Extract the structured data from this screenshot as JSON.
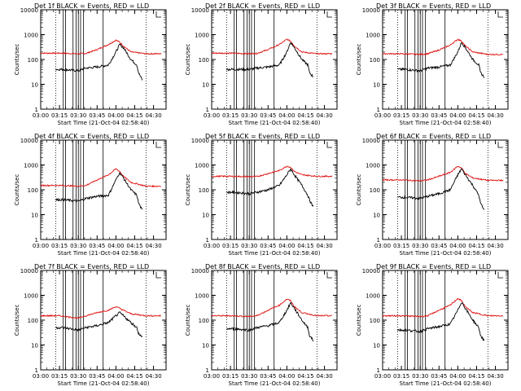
{
  "figure": {
    "title_suffix": "BLACK = Events, RED = LLD",
    "xlabel": "Start Time (21-Oct-04 02:58:40)",
    "ylabel": "Counts/sec",
    "colors": {
      "events": "#000000",
      "lld": "#e01010",
      "axes": "#000000"
    }
  },
  "chart_data": [
    {
      "type": "line",
      "detector": "1f",
      "title": "Det 1f BLACK = Events, RED = LLD",
      "xlabel": "Start Time (21-Oct-04 02:58:40)",
      "ylabel": "Counts/sec",
      "xlim": [
        3.0,
        4.667
      ],
      "ylim": [
        1,
        10000
      ],
      "yscale": "log",
      "x_ticks": [
        "03:00",
        "03:15",
        "03:30",
        "03:45",
        "04:00",
        "04:15",
        "04:30"
      ],
      "y_ticks": [
        "1",
        "10",
        "100",
        "1000",
        "10000"
      ],
      "dotted_lines": [
        3.2,
        4.4
      ],
      "solid_lines": [
        3.3,
        3.33,
        3.43,
        3.47,
        3.5,
        3.53,
        3.57,
        3.83
      ],
      "series": [
        {
          "name": "LLD",
          "color": "red",
          "x": [
            3.0,
            3.25,
            3.5,
            3.6,
            3.75,
            3.9,
            4.0,
            4.05,
            4.1,
            4.2,
            4.4,
            4.6
          ],
          "y": [
            180,
            180,
            170,
            175,
            250,
            400,
            600,
            500,
            350,
            200,
            170,
            170
          ]
        },
        {
          "name": "Events",
          "color": "black",
          "x": [
            3.2,
            3.3,
            3.5,
            3.6,
            3.75,
            3.9,
            4.0,
            4.05,
            4.1,
            4.2,
            4.28,
            4.3,
            4.35
          ],
          "y": [
            40,
            40,
            35,
            45,
            50,
            60,
            200,
            400,
            300,
            100,
            60,
            30,
            15
          ]
        }
      ]
    },
    {
      "type": "line",
      "detector": "2f",
      "title": "Det 2f BLACK = Events, RED = LLD",
      "xlabel": "Start Time (21-Oct-04 02:58:40)",
      "ylabel": "Counts/sec",
      "xlim": [
        3.0,
        4.667
      ],
      "ylim": [
        1,
        10000
      ],
      "yscale": "log",
      "x_ticks": [
        "03:00",
        "03:15",
        "03:30",
        "03:45",
        "04:00",
        "04:15",
        "04:30"
      ],
      "y_ticks": [
        "1",
        "10",
        "100",
        "1000",
        "10000"
      ],
      "dotted_lines": [
        3.2,
        4.4
      ],
      "solid_lines": [
        3.3,
        3.33,
        3.43,
        3.47,
        3.5,
        3.53,
        3.57,
        3.83
      ],
      "series": [
        {
          "name": "LLD",
          "color": "red",
          "x": [
            3.0,
            3.25,
            3.5,
            3.6,
            3.75,
            3.9,
            4.0,
            4.05,
            4.1,
            4.2,
            4.4,
            4.6
          ],
          "y": [
            180,
            180,
            170,
            175,
            250,
            400,
            650,
            550,
            350,
            200,
            170,
            170
          ]
        },
        {
          "name": "Events",
          "color": "black",
          "x": [
            3.2,
            3.3,
            3.5,
            3.6,
            3.75,
            3.9,
            4.0,
            4.05,
            4.1,
            4.2,
            4.28,
            4.3,
            4.35
          ],
          "y": [
            40,
            40,
            40,
            45,
            50,
            60,
            200,
            500,
            300,
            100,
            60,
            30,
            20
          ]
        }
      ]
    },
    {
      "type": "line",
      "detector": "3f",
      "title": "Det 3f BLACK = Events, RED = LLD",
      "xlabel": "Start Time (21-Oct-04 02:58:40)",
      "ylabel": "Counts/sec",
      "xlim": [
        3.0,
        4.667
      ],
      "ylim": [
        1,
        10000
      ],
      "yscale": "log",
      "x_ticks": [
        "03:00",
        "03:15",
        "03:30",
        "03:45",
        "04:00",
        "04:15",
        "04:30"
      ],
      "y_ticks": [
        "1",
        "10",
        "100",
        "1000",
        "10000"
      ],
      "dotted_lines": [
        3.2,
        4.4
      ],
      "solid_lines": [
        3.3,
        3.33,
        3.43,
        3.47,
        3.5,
        3.53,
        3.57,
        3.83
      ],
      "series": [
        {
          "name": "LLD",
          "color": "red",
          "x": [
            3.0,
            3.25,
            3.5,
            3.6,
            3.75,
            3.9,
            4.0,
            4.05,
            4.1,
            4.2,
            4.4,
            4.6
          ],
          "y": [
            170,
            170,
            160,
            170,
            240,
            380,
            650,
            550,
            350,
            200,
            160,
            160
          ]
        },
        {
          "name": "Events",
          "color": "black",
          "x": [
            3.2,
            3.3,
            3.5,
            3.6,
            3.75,
            3.9,
            4.0,
            4.05,
            4.1,
            4.2,
            4.28,
            4.3,
            4.35
          ],
          "y": [
            40,
            40,
            35,
            45,
            50,
            60,
            200,
            500,
            300,
            100,
            60,
            30,
            20
          ]
        }
      ]
    },
    {
      "type": "line",
      "detector": "4f",
      "title": "Det 4f BLACK = Events, RED = LLD",
      "xlabel": "Start Time (21-Oct-04 02:58:40)",
      "ylabel": "Counts/sec",
      "xlim": [
        3.0,
        4.667
      ],
      "ylim": [
        1,
        10000
      ],
      "yscale": "log",
      "x_ticks": [
        "03:00",
        "03:15",
        "03:30",
        "03:45",
        "04:00",
        "04:15",
        "04:30"
      ],
      "y_ticks": [
        "1",
        "10",
        "100",
        "1000",
        "10000"
      ],
      "dotted_lines": [
        3.2,
        4.4
      ],
      "solid_lines": [
        3.3,
        3.33,
        3.43,
        3.47,
        3.5,
        3.53,
        3.57,
        3.83
      ],
      "series": [
        {
          "name": "LLD",
          "color": "red",
          "x": [
            3.0,
            3.25,
            3.5,
            3.6,
            3.75,
            3.9,
            4.0,
            4.05,
            4.1,
            4.2,
            4.4,
            4.6
          ],
          "y": [
            150,
            150,
            140,
            150,
            250,
            400,
            700,
            550,
            350,
            200,
            140,
            140
          ]
        },
        {
          "name": "Events",
          "color": "black",
          "x": [
            3.2,
            3.3,
            3.5,
            3.6,
            3.75,
            3.9,
            4.0,
            4.05,
            4.1,
            4.2,
            4.28,
            4.3,
            4.35
          ],
          "y": [
            40,
            40,
            35,
            45,
            55,
            60,
            250,
            500,
            300,
            100,
            60,
            30,
            15
          ]
        }
      ]
    },
    {
      "type": "line",
      "detector": "5f",
      "title": "Det 5f BLACK = Events, RED = LLD",
      "xlabel": "Start Time (21-Oct-04 02:58:40)",
      "ylabel": "Counts/sec",
      "xlim": [
        3.0,
        4.667
      ],
      "ylim": [
        1,
        10000
      ],
      "yscale": "log",
      "x_ticks": [
        "03:00",
        "03:15",
        "03:30",
        "03:45",
        "04:00",
        "04:15",
        "04:30"
      ],
      "y_ticks": [
        "1",
        "10",
        "100",
        "1000",
        "10000"
      ],
      "dotted_lines": [
        3.2,
        4.4
      ],
      "solid_lines": [
        3.3,
        3.33,
        3.43,
        3.47,
        3.5,
        3.53,
        3.57,
        3.83
      ],
      "series": [
        {
          "name": "LLD",
          "color": "red",
          "x": [
            3.0,
            3.25,
            3.5,
            3.6,
            3.75,
            3.9,
            4.0,
            4.05,
            4.1,
            4.2,
            4.4,
            4.6
          ],
          "y": [
            350,
            350,
            340,
            340,
            450,
            600,
            900,
            800,
            550,
            400,
            350,
            350
          ]
        },
        {
          "name": "Events",
          "color": "black",
          "x": [
            3.2,
            3.3,
            3.5,
            3.6,
            3.75,
            3.9,
            4.0,
            4.05,
            4.1,
            4.2,
            4.28,
            4.3,
            4.35
          ],
          "y": [
            80,
            80,
            70,
            80,
            100,
            150,
            400,
            700,
            400,
            150,
            60,
            40,
            20
          ]
        }
      ]
    },
    {
      "type": "line",
      "detector": "6f",
      "title": "Det 6f BLACK = Events, RED = LLD",
      "xlabel": "Start Time (21-Oct-04 02:58:40)",
      "ylabel": "Counts/sec",
      "xlim": [
        3.0,
        4.667
      ],
      "ylim": [
        1,
        10000
      ],
      "yscale": "log",
      "x_ticks": [
        "03:00",
        "03:15",
        "03:30",
        "03:45",
        "04:00",
        "04:15",
        "04:30"
      ],
      "y_ticks": [
        "1",
        "10",
        "100",
        "1000",
        "10000"
      ],
      "dotted_lines": [
        3.2,
        4.4
      ],
      "solid_lines": [
        3.3,
        3.33,
        3.43,
        3.47,
        3.5,
        3.53,
        3.57,
        3.83
      ],
      "series": [
        {
          "name": "LLD",
          "color": "red",
          "x": [
            3.0,
            3.25,
            3.5,
            3.6,
            3.75,
            3.9,
            4.0,
            4.05,
            4.1,
            4.2,
            4.4,
            4.6
          ],
          "y": [
            250,
            250,
            230,
            250,
            350,
            500,
            900,
            750,
            450,
            300,
            240,
            240
          ]
        },
        {
          "name": "Events",
          "color": "black",
          "x": [
            3.2,
            3.3,
            3.5,
            3.6,
            3.75,
            3.9,
            4.0,
            4.05,
            4.1,
            4.2,
            4.28,
            4.3,
            4.35
          ],
          "y": [
            50,
            50,
            45,
            55,
            70,
            100,
            400,
            700,
            400,
            150,
            60,
            30,
            15
          ]
        }
      ]
    },
    {
      "type": "line",
      "detector": "7f",
      "title": "Det 7f BLACK = Events, RED = LLD",
      "xlabel": "Start Time (21-Oct-04 02:58:40)",
      "ylabel": "Counts/sec",
      "xlim": [
        3.0,
        4.667
      ],
      "ylim": [
        1,
        10000
      ],
      "yscale": "log",
      "x_ticks": [
        "03:00",
        "03:15",
        "03:30",
        "03:45",
        "04:00",
        "04:15",
        "04:30"
      ],
      "y_ticks": [
        "1",
        "10",
        "100",
        "1000",
        "10000"
      ],
      "dotted_lines": [
        3.2,
        4.4
      ],
      "solid_lines": [
        3.3,
        3.33,
        3.43,
        3.47,
        3.5,
        3.53,
        3.57,
        3.83
      ],
      "series": [
        {
          "name": "LLD",
          "color": "red",
          "x": [
            3.0,
            3.25,
            3.5,
            3.6,
            3.75,
            3.9,
            4.0,
            4.05,
            4.1,
            4.2,
            4.4,
            4.6
          ],
          "y": [
            150,
            150,
            120,
            150,
            200,
            250,
            350,
            300,
            250,
            180,
            150,
            150
          ]
        },
        {
          "name": "Events",
          "color": "black",
          "x": [
            3.2,
            3.3,
            3.5,
            3.6,
            3.75,
            3.9,
            4.0,
            4.05,
            4.1,
            4.2,
            4.28,
            4.3,
            4.35
          ],
          "y": [
            50,
            50,
            40,
            50,
            60,
            80,
            150,
            200,
            150,
            80,
            50,
            30,
            20
          ]
        }
      ]
    },
    {
      "type": "line",
      "detector": "8f",
      "title": "Det 8f BLACK = Events, RED = LLD",
      "xlabel": "Start Time (21-Oct-04 02:58:40)",
      "ylabel": "Counts/sec",
      "xlim": [
        3.0,
        4.667
      ],
      "ylim": [
        1,
        10000
      ],
      "yscale": "log",
      "x_ticks": [
        "03:00",
        "03:15",
        "03:30",
        "03:45",
        "04:00",
        "04:15",
        "04:30"
      ],
      "y_ticks": [
        "1",
        "10",
        "100",
        "1000",
        "10000"
      ],
      "dotted_lines": [
        3.2,
        4.4
      ],
      "solid_lines": [
        3.3,
        3.33,
        3.43,
        3.47,
        3.5,
        3.53,
        3.57,
        3.83
      ],
      "series": [
        {
          "name": "LLD",
          "color": "red",
          "x": [
            3.0,
            3.25,
            3.5,
            3.6,
            3.75,
            3.9,
            4.0,
            4.05,
            4.1,
            4.2,
            4.4,
            4.6
          ],
          "y": [
            150,
            150,
            140,
            150,
            250,
            400,
            700,
            600,
            350,
            200,
            150,
            150
          ]
        },
        {
          "name": "Events",
          "color": "black",
          "x": [
            3.2,
            3.3,
            3.5,
            3.6,
            3.75,
            3.9,
            4.0,
            4.05,
            4.1,
            4.2,
            4.28,
            4.3,
            4.35
          ],
          "y": [
            45,
            45,
            40,
            50,
            60,
            80,
            250,
            500,
            300,
            100,
            50,
            25,
            15
          ]
        }
      ]
    },
    {
      "type": "line",
      "detector": "9f",
      "title": "Det 9f BLACK = Events, RED = LLD",
      "xlabel": "Start Time (21-Oct-04 02:58:40)",
      "ylabel": "Counts/sec",
      "xlim": [
        3.0,
        4.667
      ],
      "ylim": [
        1,
        10000
      ],
      "yscale": "log",
      "x_ticks": [
        "03:00",
        "03:15",
        "03:30",
        "03:45",
        "04:00",
        "04:15",
        "04:30"
      ],
      "y_ticks": [
        "1",
        "10",
        "100",
        "1000",
        "10000"
      ],
      "dotted_lines": [
        3.2,
        4.4
      ],
      "solid_lines": [
        3.3,
        3.33,
        3.43,
        3.47,
        3.5,
        3.53,
        3.57,
        3.83
      ],
      "series": [
        {
          "name": "LLD",
          "color": "red",
          "x": [
            3.0,
            3.25,
            3.5,
            3.6,
            3.75,
            3.9,
            4.0,
            4.05,
            4.1,
            4.2,
            4.4,
            4.6
          ],
          "y": [
            150,
            150,
            140,
            150,
            250,
            400,
            750,
            600,
            350,
            200,
            150,
            150
          ]
        },
        {
          "name": "Events",
          "color": "black",
          "x": [
            3.2,
            3.3,
            3.5,
            3.6,
            3.75,
            3.9,
            4.0,
            4.05,
            4.1,
            4.2,
            4.28,
            4.3,
            4.35
          ],
          "y": [
            40,
            40,
            35,
            45,
            55,
            70,
            250,
            550,
            300,
            100,
            50,
            25,
            15
          ]
        }
      ]
    }
  ]
}
